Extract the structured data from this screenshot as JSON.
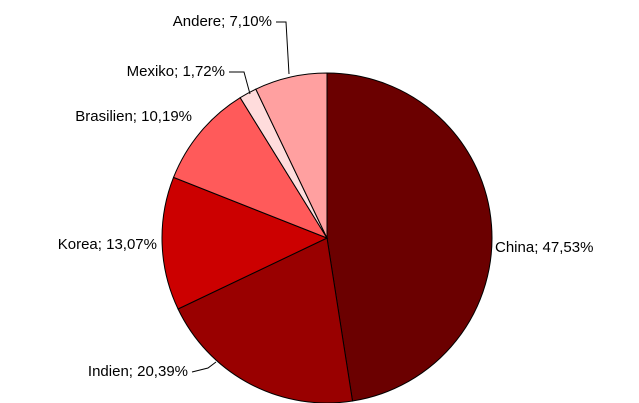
{
  "chart_data": {
    "type": "pie",
    "values": [
      47.53,
      20.39,
      13.07,
      10.19,
      1.72,
      7.1
    ],
    "value_labels": [
      "China; 47,53%",
      "Indien; 20,39%",
      "Korea; 13,07%",
      "Brasilien; 10,19%",
      "Mexiko; 1,72%",
      "Andere; 7,10%"
    ],
    "colors": [
      "#6b0000",
      "#990000",
      "#cc0000",
      "#ff5a5a",
      "#ffdcdc",
      "#ffa0a0"
    ]
  }
}
